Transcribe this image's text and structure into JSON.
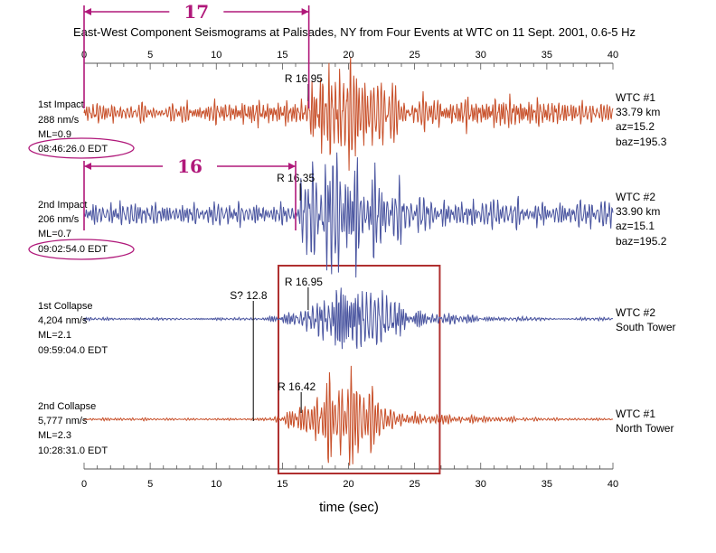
{
  "chart_data": {
    "type": "line",
    "title": "East-West Component Seismograms at Palisades, NY from Four Events at WTC on 11 Sept. 2001, 0.6-5 Hz",
    "xlabel": "time (sec)",
    "xlim": [
      0,
      40
    ],
    "x_ticks": [
      "0",
      "5",
      "10",
      "15",
      "20",
      "25",
      "30",
      "35",
      "40"
    ],
    "grid": false,
    "traces": [
      {
        "name": "1st Impact",
        "amplitude": "288 nm/s",
        "magnitude": "ML=0.9",
        "origin_time": "08:46:26.0 EDT",
        "station": "WTC #1",
        "distance": "33.79 km",
        "azimuth": "az=15.2",
        "back_azimuth": "baz=195.3",
        "pick_label": "R 16.95",
        "pick_time": 16.95,
        "color": "#c8502a"
      },
      {
        "name": "2nd Impact",
        "amplitude": "206 nm/s",
        "magnitude": "ML=0.7",
        "origin_time": "09:02:54.0 EDT",
        "station": "WTC #2",
        "distance": "33.90 km",
        "azimuth": "az=15.1",
        "back_azimuth": "baz=195.2",
        "pick_label": "R 16.35",
        "pick_time": 16.35,
        "color": "#4a55a0"
      },
      {
        "name": "1st Collapse",
        "amplitude": "4,204 nm/s",
        "magnitude": "ML=2.1",
        "origin_time": "09:59:04.0 EDT",
        "station": "WTC #2",
        "location": "South Tower",
        "pick_label": "R 16.95",
        "pick_time": 16.95,
        "s_label": "S? 12.8",
        "s_time": 12.8,
        "color": "#4a55a0"
      },
      {
        "name": "2nd Collapse",
        "amplitude": "5,777 nm/s",
        "magnitude": "ML=2.3",
        "origin_time": "10:28:31.0 EDT",
        "station": "WTC #1",
        "location": "North Tower",
        "pick_label": "R 16.42",
        "pick_time": 16.42,
        "color": "#c8502a"
      }
    ],
    "annotations": {
      "interval_1": {
        "label": "17",
        "from": 0,
        "to": 17
      },
      "interval_2": {
        "label": "16",
        "from": 0,
        "to": 16
      },
      "highlight_box": {
        "from": 14.7,
        "to": 26.9
      },
      "annotation_color": "#b0187a",
      "box_color": "#b03030"
    }
  }
}
